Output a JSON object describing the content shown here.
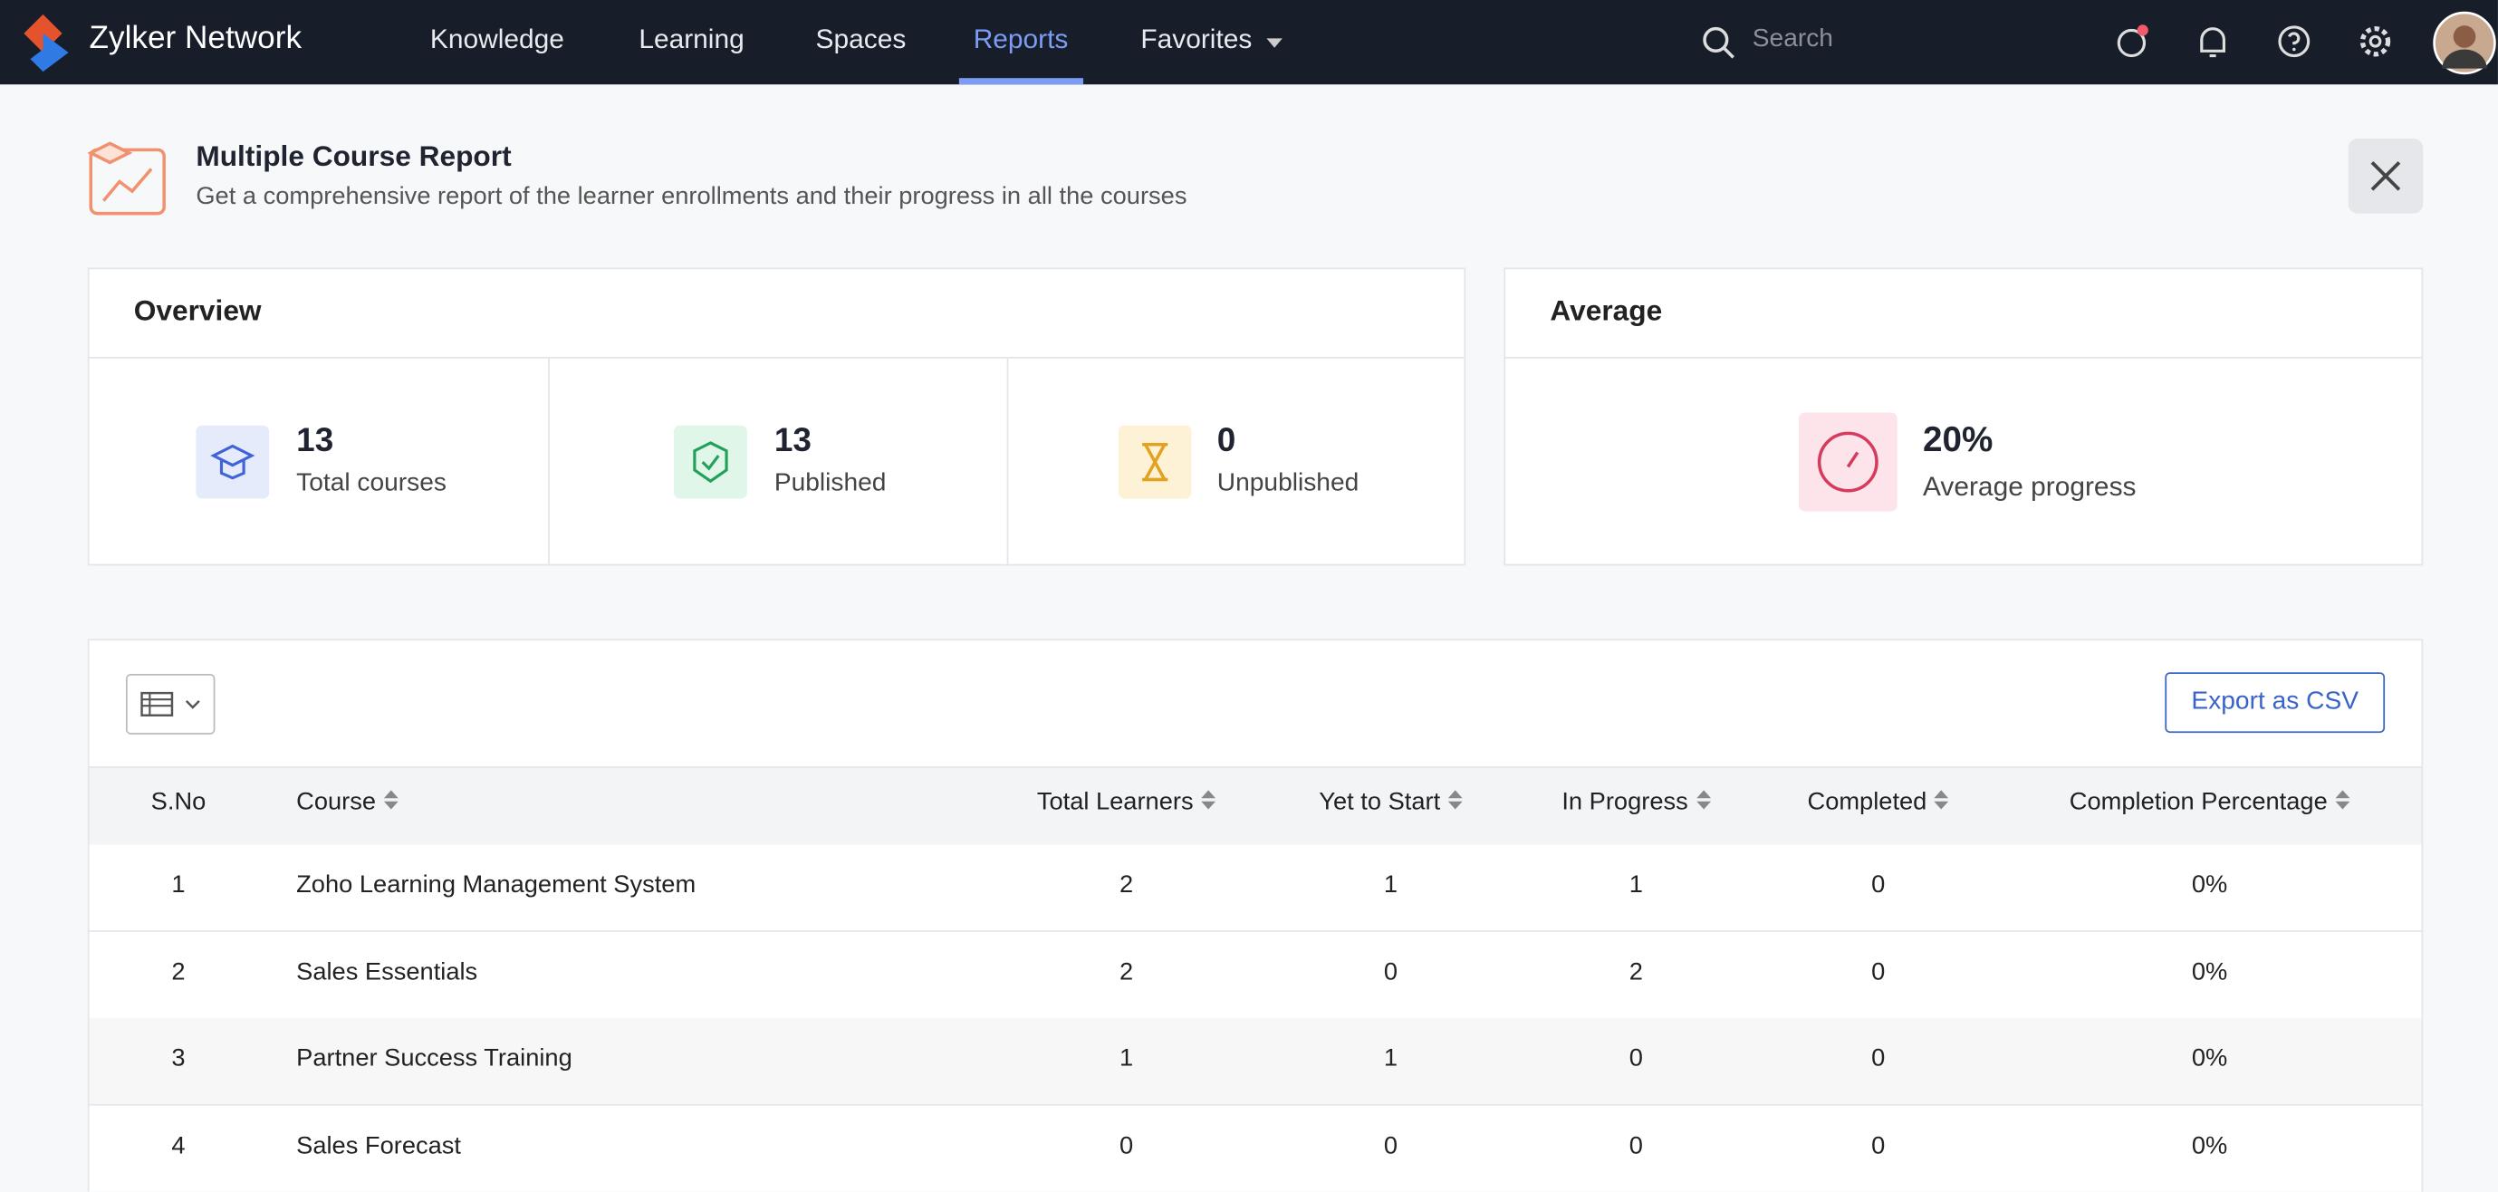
{
  "brand": "Zylker Network",
  "nav": [
    "Knowledge",
    "Learning",
    "Spaces",
    "Reports",
    "Favorites"
  ],
  "search_placeholder": "Search",
  "header": {
    "title": "Multiple Course Report",
    "subtitle": "Get a comprehensive report of the learner enrollments and their progress in all the courses"
  },
  "overview": {
    "title": "Overview",
    "stats": [
      {
        "value": "13",
        "label": "Total courses"
      },
      {
        "value": "13",
        "label": "Published"
      },
      {
        "value": "0",
        "label": "Unpublished"
      }
    ]
  },
  "average": {
    "title": "Average",
    "value": "20%",
    "label": "Average progress"
  },
  "export_button": "Export as CSV",
  "table": {
    "columns": [
      "S.No",
      "Course",
      "Total Learners",
      "Yet to Start",
      "In Progress",
      "Completed",
      "Completion Percentage"
    ],
    "rows": [
      [
        "1",
        "Zoho Learning Management System",
        "2",
        "1",
        "1",
        "0",
        "0%"
      ],
      [
        "2",
        "Sales Essentials",
        "2",
        "0",
        "2",
        "0",
        "0%"
      ],
      [
        "3",
        "Partner Success Training",
        "1",
        "1",
        "0",
        "0",
        "0%"
      ],
      [
        "4",
        "Sales Forecast",
        "0",
        "0",
        "0",
        "0",
        "0%"
      ]
    ]
  }
}
